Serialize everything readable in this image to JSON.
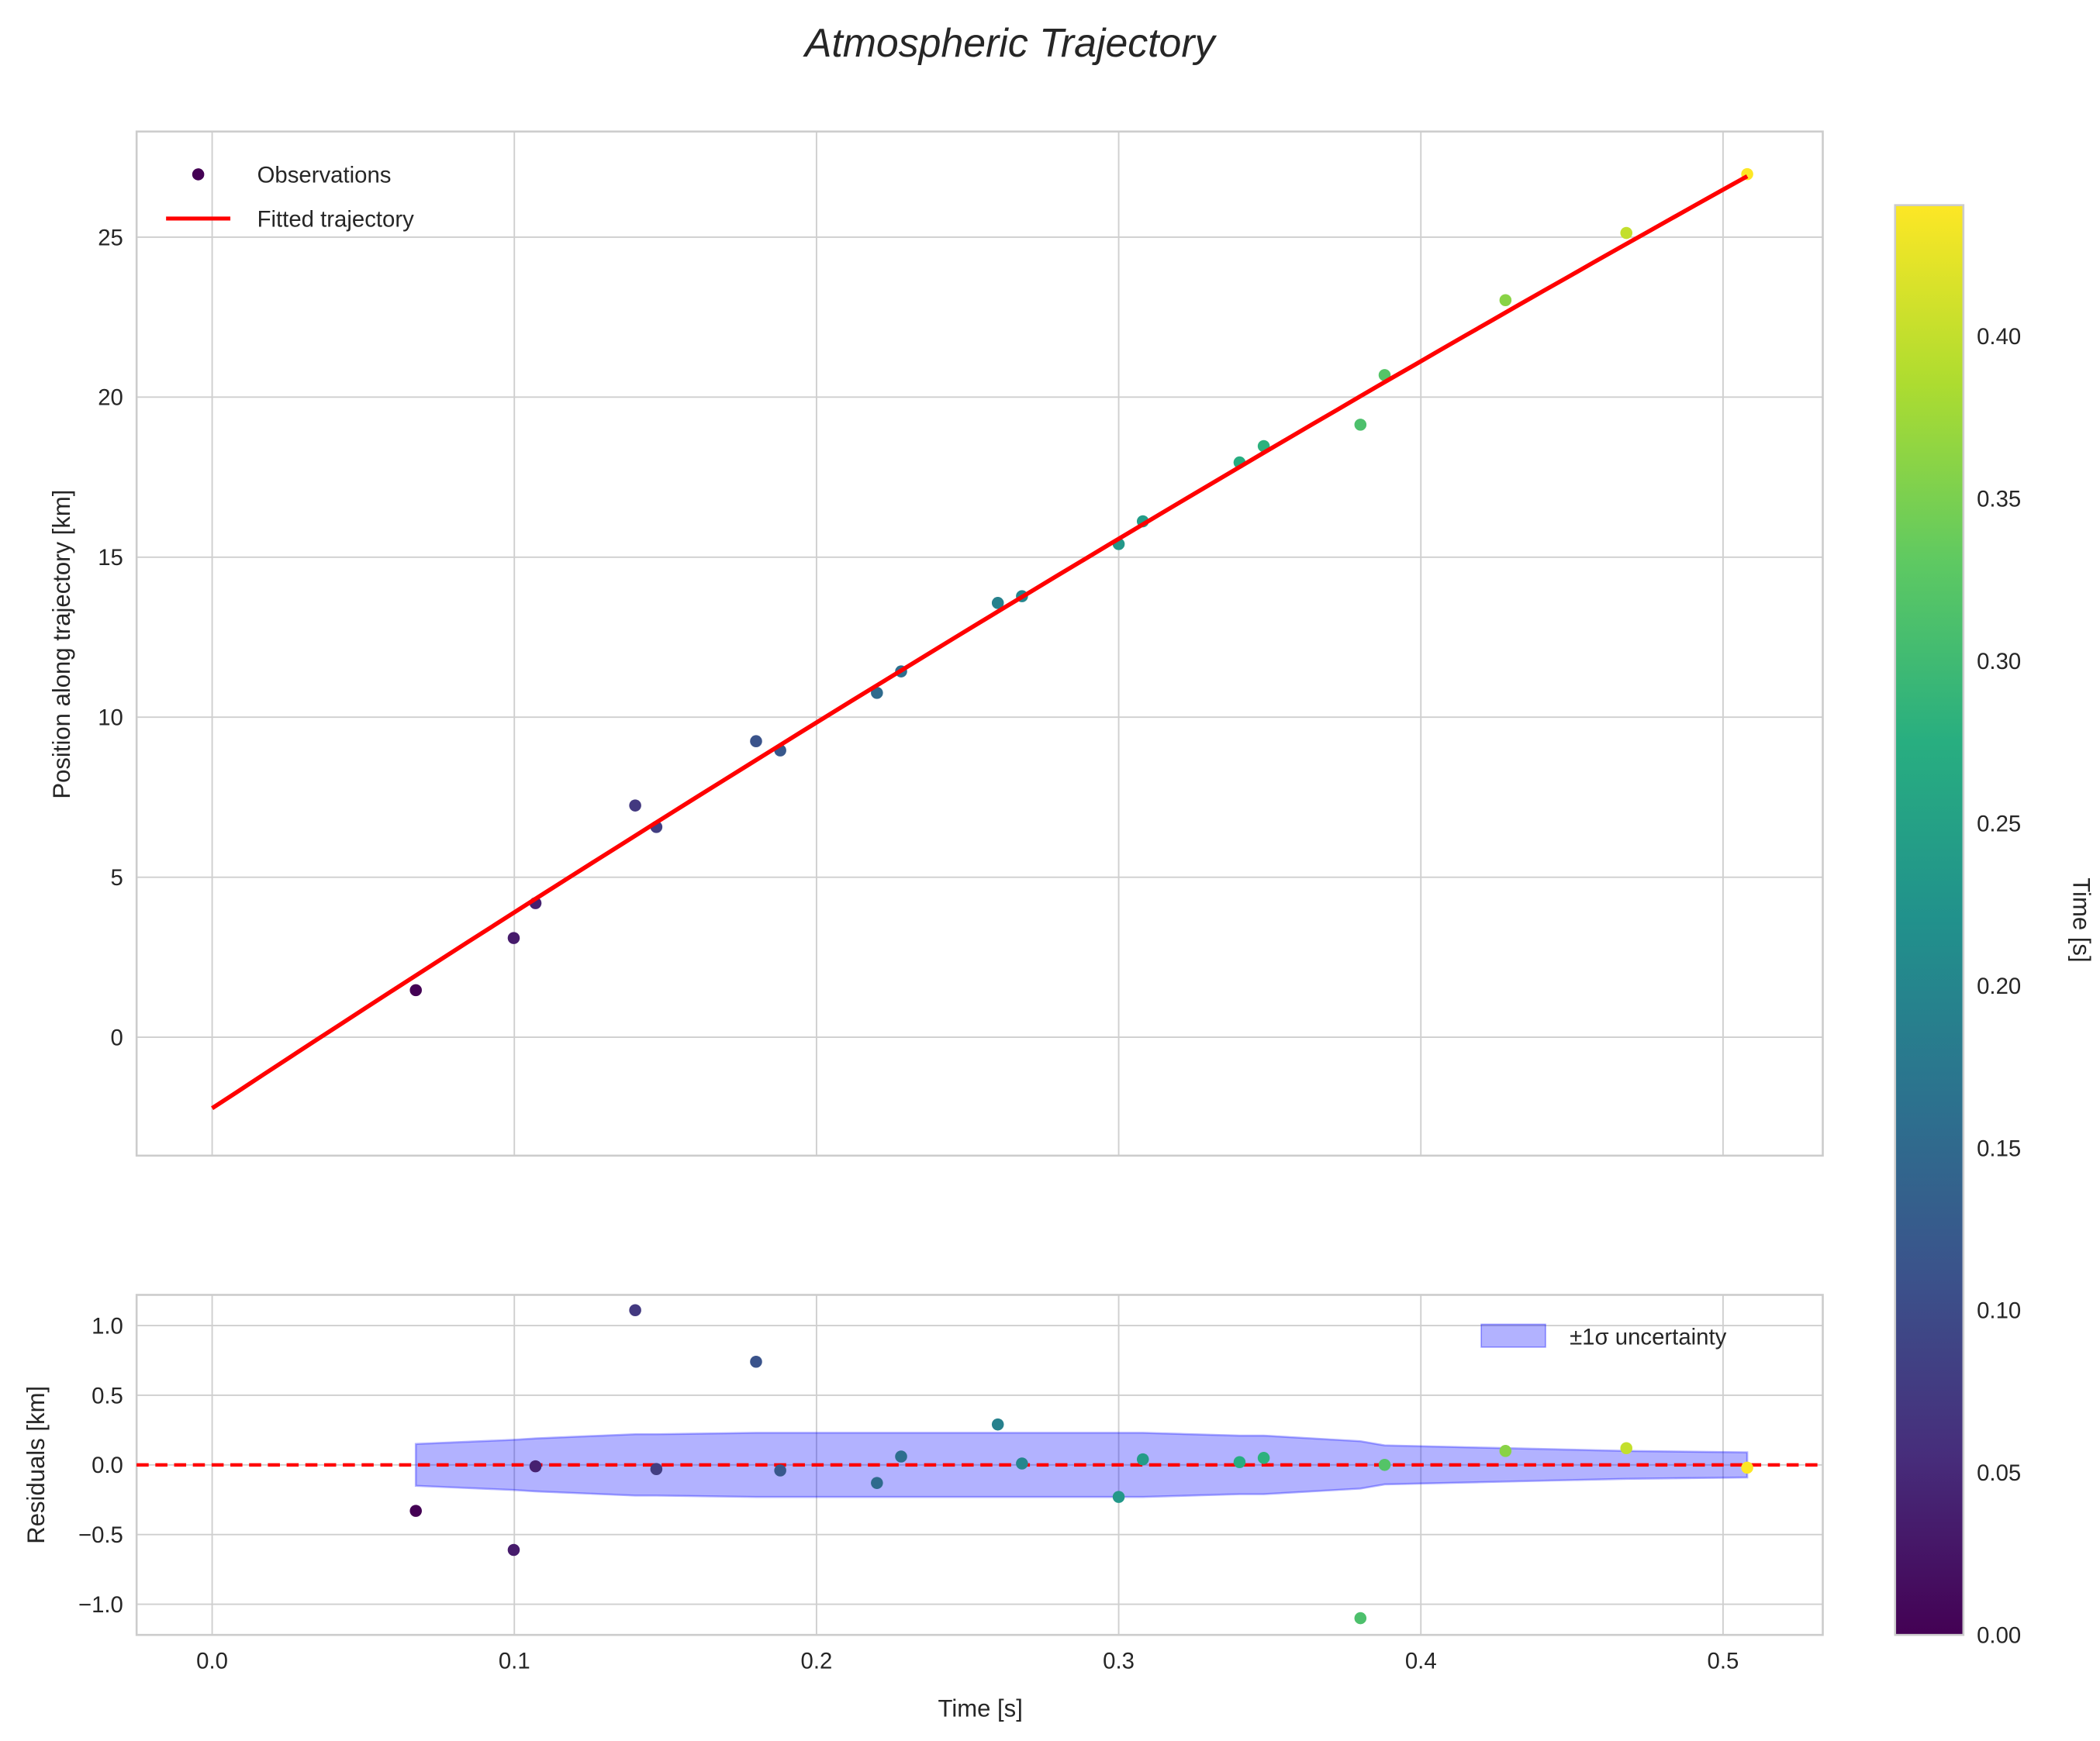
{
  "chart_data": [
    {
      "type": "scatter",
      "title": "Atmospheric Trajectory",
      "xlabel": "",
      "ylabel": "Position along trajectory [km]",
      "xlim": [
        -0.025,
        0.533
      ],
      "ylim": [
        -3.7,
        28.3
      ],
      "xticks": [
        "0.0",
        "0.1",
        "0.2",
        "0.3",
        "0.4",
        "0.5"
      ],
      "xtick_values": [
        0,
        0.1,
        0.2,
        0.3,
        0.4,
        0.5
      ],
      "yticks": [
        "0",
        "5",
        "10",
        "15",
        "20",
        "25"
      ],
      "ytick_values": [
        0,
        5,
        10,
        15,
        20,
        25
      ],
      "grid": true,
      "legend": {
        "placement": "top-left",
        "entries": [
          "Observations",
          "Fitted trajectory"
        ]
      },
      "observations": {
        "name": "Observations",
        "t": [
          0.0674,
          0.0998,
          0.107,
          0.14,
          0.147,
          0.18,
          0.188,
          0.22,
          0.228,
          0.26,
          0.268,
          0.3,
          0.308,
          0.34,
          0.348,
          0.38,
          0.388,
          0.428,
          0.468,
          0.508
        ],
        "position": [
          1.47,
          3.1,
          4.19,
          7.24,
          6.57,
          9.25,
          8.96,
          10.76,
          11.43,
          13.57,
          13.78,
          15.41,
          16.12,
          17.96,
          18.47,
          19.14,
          20.69,
          23.03,
          25.13,
          26.97
        ]
      },
      "fit": {
        "name": "Fitted trajectory",
        "color": "#ff0000",
        "model": "quadratic",
        "coefficients": [
          -2.22,
          62.17,
          -9.53
        ],
        "t_range": [
          0,
          0.508
        ]
      }
    },
    {
      "type": "scatter",
      "xlabel": "Time [s]",
      "ylabel": "Residuals [km]",
      "xlim": [
        -0.025,
        0.533
      ],
      "ylim": [
        -1.22,
        1.22
      ],
      "xticks": [
        "0.0",
        "0.1",
        "0.2",
        "0.3",
        "0.4",
        "0.5"
      ],
      "xtick_values": [
        0,
        0.1,
        0.2,
        0.3,
        0.4,
        0.5
      ],
      "yticks": [
        "−1.0",
        "−0.5",
        "0.0",
        "0.5",
        "1.0"
      ],
      "ytick_values": [
        -1,
        -0.5,
        0,
        0.5,
        1
      ],
      "grid": true,
      "legend": {
        "placement": "top-right",
        "entries": [
          "±1σ uncertainty"
        ]
      },
      "residuals": [
        -0.33,
        -0.61,
        -0.01,
        1.11,
        -0.03,
        0.74,
        -0.04,
        -0.13,
        0.06,
        0.29,
        0.01,
        -0.23,
        0.04,
        0.02,
        0.05,
        -1.1,
        0.0,
        0.1,
        0.12,
        -0.02
      ],
      "sigma": [
        0.15,
        0.18,
        0.19,
        0.22,
        0.22,
        0.23,
        0.23,
        0.23,
        0.23,
        0.23,
        0.23,
        0.23,
        0.23,
        0.21,
        0.21,
        0.17,
        0.14,
        0.12,
        0.1,
        0.09
      ],
      "band_color": "#0000ff",
      "zero_line_color": "#ff0000"
    }
  ],
  "colorbar": {
    "label": "Time [s]",
    "colormap": "viridis",
    "range": [
      0,
      0.4404
    ],
    "ticks": [
      "0.00",
      "0.05",
      "0.10",
      "0.15",
      "0.20",
      "0.25",
      "0.30",
      "0.35",
      "0.40"
    ],
    "tick_values": [
      0,
      0.05,
      0.1,
      0.15,
      0.2,
      0.25,
      0.3,
      0.35,
      0.4
    ]
  }
}
